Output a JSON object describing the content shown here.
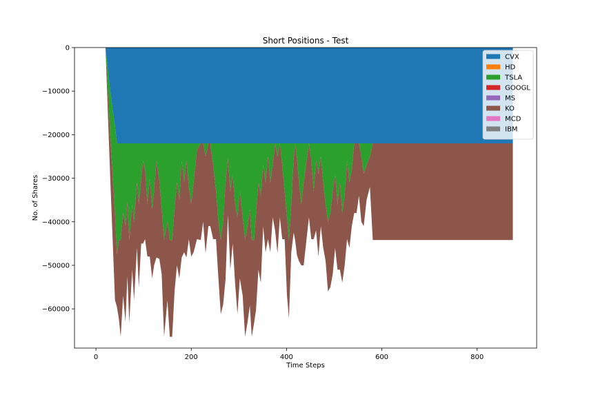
{
  "chart_data": {
    "type": "area",
    "title": "Short Positions - Test",
    "xlabel": "Time Steps",
    "ylabel": "No. of Shares",
    "xlim": [
      -45,
      925
    ],
    "ylim": [
      -69000,
      0
    ],
    "xticks": [
      0,
      200,
      400,
      600,
      800
    ],
    "yticks": [
      0,
      -10000,
      -20000,
      -30000,
      -40000,
      -50000,
      -60000
    ],
    "xtick_labels": [
      "0",
      "200",
      "400",
      "600",
      "800"
    ],
    "ytick_labels": [
      "0",
      "−10000",
      "−20000",
      "−30000",
      "−40000",
      "−50000",
      "−60000"
    ],
    "legend_position": "top-right",
    "grid": false,
    "series": [
      {
        "name": "CVX",
        "color": "#1f77b4",
        "points": [
          [
            0,
            0
          ],
          [
            20,
            0
          ],
          [
            25,
            -5000
          ],
          [
            30,
            -10000
          ],
          [
            35,
            -14000
          ],
          [
            40,
            -18000
          ],
          [
            44,
            -22000
          ],
          [
            875,
            -22000
          ]
        ]
      },
      {
        "name": "HD",
        "color": "#ff7f0e",
        "points": [
          [
            0,
            0
          ],
          [
            875,
            0
          ]
        ]
      },
      {
        "name": "TSLA",
        "color": "#2ca02c",
        "points": [
          [
            0,
            0
          ],
          [
            20,
            0
          ],
          [
            25,
            -5000
          ],
          [
            30,
            -10000
          ],
          [
            35,
            -15000
          ],
          [
            40,
            -20000
          ],
          [
            44,
            -25500
          ],
          [
            48,
            -22200
          ],
          [
            52,
            -22200
          ],
          [
            57,
            -16000
          ],
          [
            62,
            -19000
          ],
          [
            66,
            -13500
          ],
          [
            70,
            -22200
          ],
          [
            76,
            -14000
          ],
          [
            80,
            -18000
          ],
          [
            86,
            -9000
          ],
          [
            90,
            -14000
          ],
          [
            95,
            -8000
          ],
          [
            99,
            -4000
          ],
          [
            103,
            -6000
          ],
          [
            108,
            -14000
          ],
          [
            113,
            -8000
          ],
          [
            118,
            -15000
          ],
          [
            122,
            -11000
          ],
          [
            127,
            -4000
          ],
          [
            133,
            -8500
          ],
          [
            138,
            -15000
          ],
          [
            143,
            -22200
          ],
          [
            150,
            -18000
          ],
          [
            155,
            -22200
          ],
          [
            160,
            -22200
          ],
          [
            165,
            -15000
          ],
          [
            170,
            -9000
          ],
          [
            175,
            -13000
          ],
          [
            180,
            -4000
          ],
          [
            185,
            -9000
          ],
          [
            190,
            -4000
          ],
          [
            195,
            -10000
          ],
          [
            200,
            -14000
          ],
          [
            205,
            -9000
          ],
          [
            212,
            -1500
          ],
          [
            220,
            0
          ],
          [
            225,
            0
          ],
          [
            230,
            -3000
          ],
          [
            236,
            0
          ],
          [
            240,
            0
          ],
          [
            246,
            -5000
          ],
          [
            252,
            -11000
          ],
          [
            257,
            -18000
          ],
          [
            262,
            -22200
          ],
          [
            267,
            -18000
          ],
          [
            272,
            -9000
          ],
          [
            277,
            -3500
          ],
          [
            282,
            -11000
          ],
          [
            287,
            -7000
          ],
          [
            292,
            -14000
          ],
          [
            297,
            -17000
          ],
          [
            302,
            -11000
          ],
          [
            308,
            -17000
          ],
          [
            313,
            -22200
          ],
          [
            318,
            -19000
          ],
          [
            323,
            -15000
          ],
          [
            327,
            -22200
          ],
          [
            332,
            -22200
          ],
          [
            336,
            -16000
          ],
          [
            341,
            -9000
          ],
          [
            346,
            -12000
          ],
          [
            351,
            -5000
          ],
          [
            356,
            -9000
          ],
          [
            361,
            -3000
          ],
          [
            366,
            -9000
          ],
          [
            371,
            -5000
          ],
          [
            376,
            0
          ],
          [
            381,
            -3000
          ],
          [
            386,
            0
          ],
          [
            391,
            -5000
          ],
          [
            396,
            -11000
          ],
          [
            401,
            -17000
          ],
          [
            405,
            -22200
          ],
          [
            410,
            -14000
          ],
          [
            415,
            -3500
          ],
          [
            418,
            0
          ],
          [
            422,
            -3500
          ],
          [
            426,
            -9000
          ],
          [
            431,
            -14000
          ],
          [
            436,
            -9000
          ],
          [
            441,
            -5000
          ],
          [
            447,
            0
          ],
          [
            452,
            -4000
          ],
          [
            457,
            -11000
          ],
          [
            462,
            -4000
          ],
          [
            467,
            -7000
          ],
          [
            472,
            -3000
          ],
          [
            477,
            -9000
          ],
          [
            482,
            -14000
          ],
          [
            487,
            -18000
          ],
          [
            492,
            -16000
          ],
          [
            497,
            -11000
          ],
          [
            502,
            -7000
          ],
          [
            507,
            -14000
          ],
          [
            512,
            -9000
          ],
          [
            517,
            -16000
          ],
          [
            522,
            -12000
          ],
          [
            527,
            -4000
          ],
          [
            532,
            -9000
          ],
          [
            537,
            -6000
          ],
          [
            542,
            0
          ],
          [
            547,
            0
          ],
          [
            552,
            0
          ],
          [
            557,
            -3000
          ],
          [
            562,
            -7000
          ],
          [
            568,
            -5000
          ],
          [
            575,
            -3000
          ],
          [
            581,
            0
          ],
          [
            875,
            0
          ]
        ]
      },
      {
        "name": "GOOGL",
        "color": "#d62728",
        "points": [
          [
            0,
            0
          ],
          [
            875,
            0
          ]
        ]
      },
      {
        "name": "MS",
        "color": "#9467bd",
        "points": [
          [
            0,
            0
          ],
          [
            875,
            0
          ]
        ]
      },
      {
        "name": "KO",
        "color": "#8c564b",
        "points": [
          [
            0,
            0
          ],
          [
            20,
            0
          ],
          [
            25,
            -5000
          ],
          [
            30,
            -10000
          ],
          [
            35,
            -15000
          ],
          [
            40,
            -20000
          ],
          [
            44,
            -12000
          ],
          [
            48,
            -18000
          ],
          [
            52,
            -22200
          ],
          [
            57,
            -19000
          ],
          [
            62,
            -22000
          ],
          [
            66,
            -17000
          ],
          [
            70,
            -19000
          ],
          [
            76,
            -15000
          ],
          [
            80,
            -18000
          ],
          [
            86,
            -15000
          ],
          [
            90,
            -19000
          ],
          [
            95,
            -15000
          ],
          [
            99,
            -19000
          ],
          [
            103,
            -16000
          ],
          [
            108,
            -12000
          ],
          [
            113,
            -18000
          ],
          [
            118,
            -16000
          ],
          [
            122,
            -17000
          ],
          [
            127,
            -22200
          ],
          [
            133,
            -18000
          ],
          [
            138,
            -15000
          ],
          [
            143,
            -22200
          ],
          [
            150,
            -18000
          ],
          [
            155,
            -22200
          ],
          [
            160,
            -22200
          ],
          [
            165,
            -19000
          ],
          [
            170,
            -19000
          ],
          [
            175,
            -18000
          ],
          [
            180,
            -22200
          ],
          [
            185,
            -16000
          ],
          [
            190,
            -22200
          ],
          [
            195,
            -12000
          ],
          [
            200,
            -12000
          ],
          [
            205,
            -16000
          ],
          [
            212,
            -20500
          ],
          [
            220,
            -22200
          ],
          [
            225,
            -18000
          ],
          [
            230,
            -22200
          ],
          [
            236,
            -19000
          ],
          [
            240,
            -19000
          ],
          [
            246,
            -17000
          ],
          [
            252,
            -11000
          ],
          [
            257,
            -13000
          ],
          [
            262,
            -17000
          ],
          [
            267,
            -19000
          ],
          [
            272,
            -22200
          ],
          [
            277,
            -13000
          ],
          [
            282,
            -18000
          ],
          [
            287,
            -16000
          ],
          [
            292,
            -18000
          ],
          [
            297,
            -22200
          ],
          [
            302,
            -20000
          ],
          [
            308,
            -18000
          ],
          [
            313,
            -22200
          ],
          [
            318,
            -22200
          ],
          [
            323,
            -22200
          ],
          [
            327,
            -22200
          ],
          [
            332,
            -19000
          ],
          [
            336,
            -22200
          ],
          [
            341,
            -20000
          ],
          [
            346,
            -20000
          ],
          [
            351,
            -14000
          ],
          [
            356,
            -16000
          ],
          [
            361,
            -19000
          ],
          [
            366,
            -16000
          ],
          [
            371,
            -12000
          ],
          [
            376,
            -20000
          ],
          [
            381,
            -22200
          ],
          [
            386,
            -17000
          ],
          [
            391,
            -17000
          ],
          [
            396,
            -11000
          ],
          [
            401,
            -18000
          ],
          [
            405,
            -18000
          ],
          [
            410,
            -11000
          ],
          [
            415,
            -17000
          ],
          [
            418,
            -22200
          ],
          [
            422,
            -22200
          ],
          [
            426,
            -18000
          ],
          [
            431,
            -14000
          ],
          [
            436,
            -19000
          ],
          [
            441,
            -18000
          ],
          [
            447,
            -17000
          ],
          [
            452,
            -18000
          ],
          [
            457,
            -11000
          ],
          [
            462,
            -16000
          ],
          [
            467,
            -19000
          ],
          [
            472,
            -16000
          ],
          [
            477,
            -15000
          ],
          [
            482,
            -13000
          ],
          [
            487,
            -16000
          ],
          [
            492,
            -17000
          ],
          [
            497,
            -19000
          ],
          [
            502,
            -17000
          ],
          [
            507,
            -15000
          ],
          [
            512,
            -20000
          ],
          [
            517,
            -16000
          ],
          [
            522,
            -16000
          ],
          [
            527,
            -18000
          ],
          [
            532,
            -15000
          ],
          [
            537,
            -13000
          ],
          [
            542,
            -16000
          ],
          [
            547,
            -16000
          ],
          [
            552,
            -12000
          ],
          [
            557,
            -15000
          ],
          [
            562,
            -12000
          ],
          [
            568,
            -8000
          ],
          [
            575,
            -7000
          ],
          [
            581,
            -22200
          ],
          [
            875,
            -22200
          ]
        ]
      },
      {
        "name": "MCD",
        "color": "#e377c2",
        "points": [
          [
            0,
            0
          ],
          [
            875,
            0
          ]
        ]
      },
      {
        "name": "IBM",
        "color": "#7f7f7f",
        "points": [
          [
            0,
            0
          ],
          [
            875,
            0
          ]
        ]
      }
    ]
  }
}
